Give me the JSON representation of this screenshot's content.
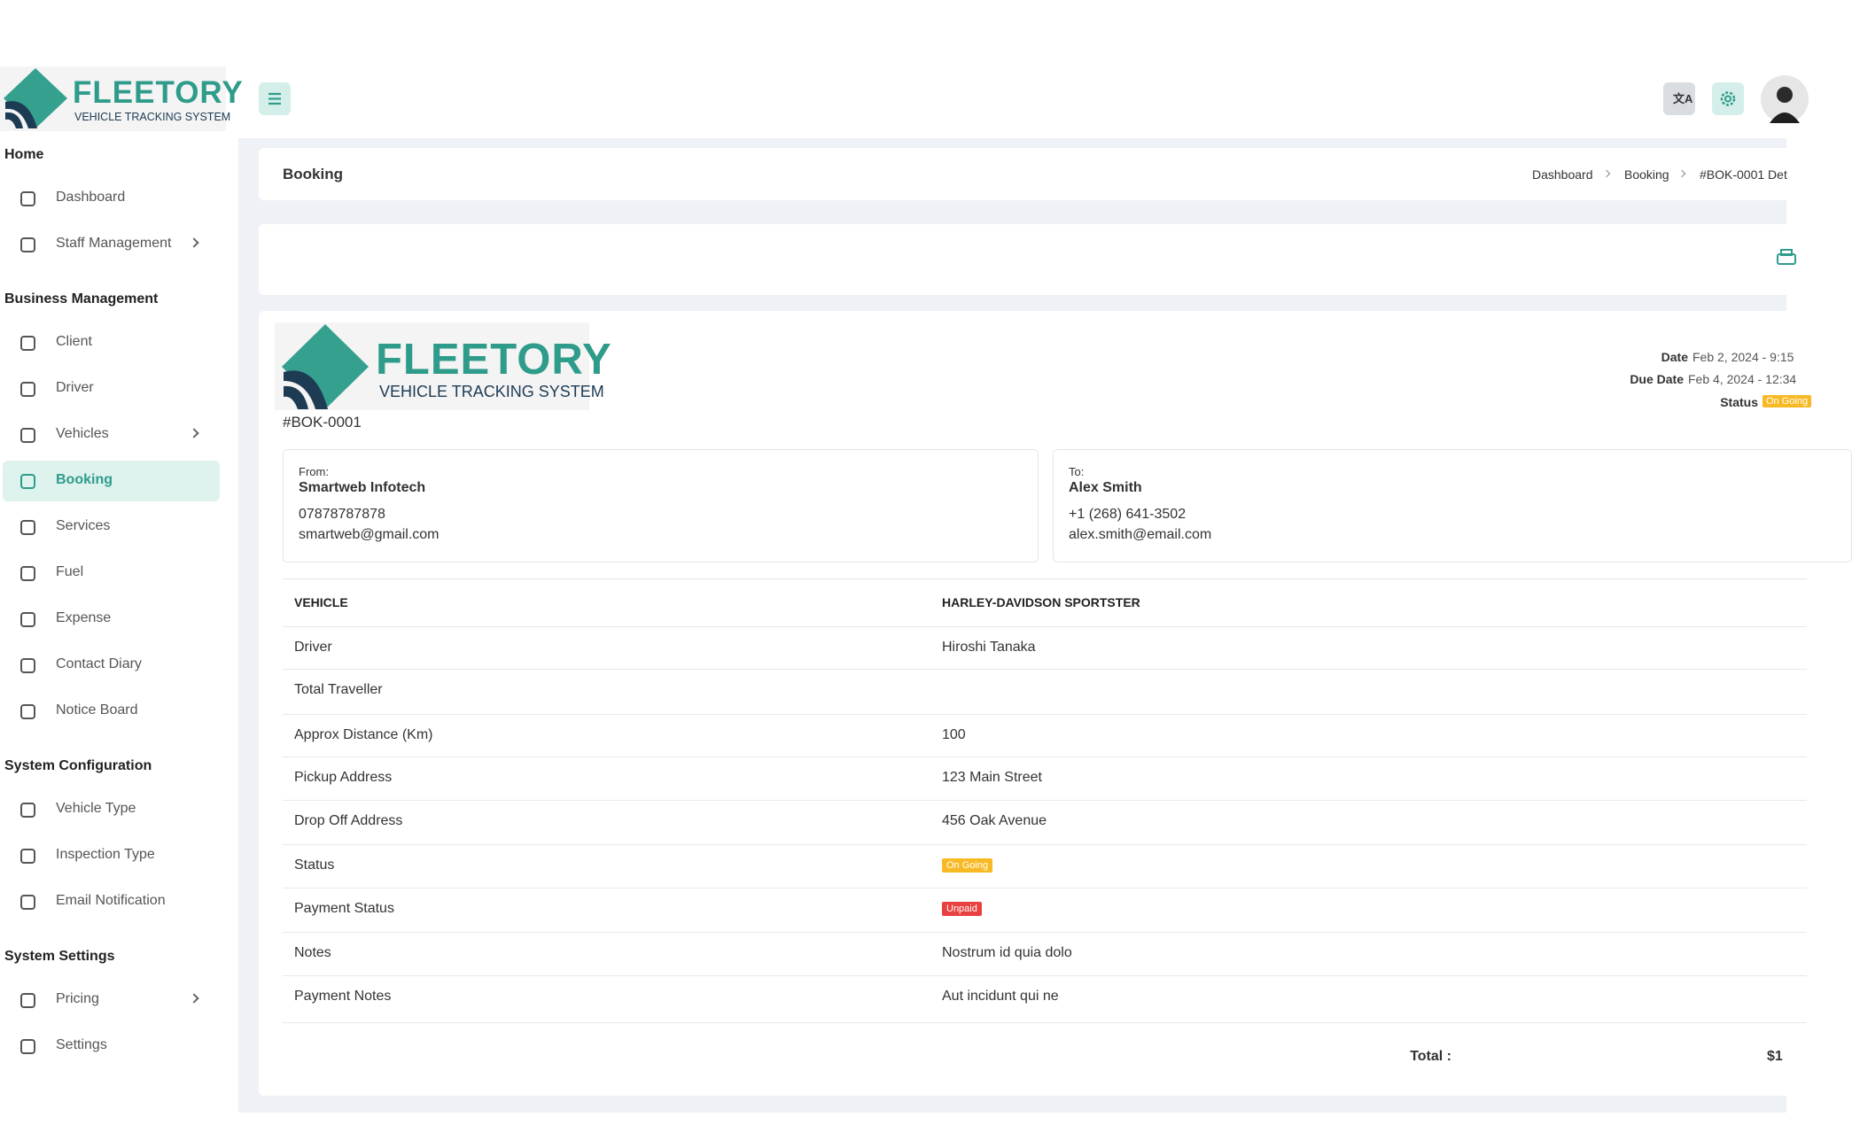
{
  "logo": {
    "name": "FLEETORY",
    "tagline": "VEHICLE TRACKING SYSTEM"
  },
  "sidebar": [
    {
      "title": "Home",
      "items": [
        {
          "label": "Dashboard"
        },
        {
          "label": "Staff Management",
          "submenu": true
        }
      ]
    },
    {
      "title": "Business Management",
      "items": [
        {
          "label": "Client"
        },
        {
          "label": "Driver"
        },
        {
          "label": "Vehicles",
          "submenu": true
        },
        {
          "label": "Booking",
          "active": true
        },
        {
          "label": "Services"
        },
        {
          "label": "Fuel"
        },
        {
          "label": "Expense"
        },
        {
          "label": "Contact Diary"
        },
        {
          "label": "Notice Board"
        }
      ]
    },
    {
      "title": "System Configuration",
      "items": [
        {
          "label": "Vehicle Type"
        },
        {
          "label": "Inspection Type"
        },
        {
          "label": "Email Notification"
        }
      ]
    },
    {
      "title": "System Settings",
      "items": [
        {
          "label": "Pricing",
          "submenu": true
        },
        {
          "label": "Settings"
        }
      ]
    }
  ],
  "breadcrumb": {
    "title": "Booking",
    "items": [
      "Dashboard",
      "Booking",
      "#BOK-0001 Det"
    ]
  },
  "invoice": {
    "number": "#BOK-0001",
    "meta": [
      {
        "label": "Date",
        "value": "Feb 2, 2024 - 9:15"
      },
      {
        "label": "Due Date",
        "value": "Feb 4, 2024 - 12:34"
      },
      {
        "label": "Status",
        "badge": "On Going"
      }
    ],
    "from": {
      "label": "From:",
      "name": "Smartweb Infotech",
      "phone": "07878787878",
      "email": "smartweb@gmail.com"
    },
    "to": {
      "label": "To:",
      "name": "Alex Smith",
      "phone": "+1 (268) 641-3502",
      "email": "alex.smith@email.com"
    },
    "table": {
      "header": [
        "VEHICLE",
        "HARLEY-DAVIDSON SPORTSTER"
      ],
      "rows": [
        {
          "label": "Driver",
          "value": "Hiroshi Tanaka"
        },
        {
          "label": "Total Traveller",
          "value": null
        },
        {
          "label": "Approx Distance (Km)",
          "value": "100"
        },
        {
          "label": "Pickup Address",
          "value": "123 Main Street"
        },
        {
          "label": "Drop Off Address",
          "value": "456 Oak Avenue"
        },
        {
          "label": "Status",
          "value": "On Going",
          "badge": "#f7b924"
        },
        {
          "label": "Payment Status",
          "value": "Unpaid",
          "badge": "#e9413f"
        },
        {
          "label": "Notes",
          "value": "Nostrum id quia dolo"
        },
        {
          "label": "Payment Notes",
          "value": "Aut incidunt qui ne"
        }
      ]
    },
    "total": {
      "label": "Total :",
      "value": "$1"
    }
  }
}
